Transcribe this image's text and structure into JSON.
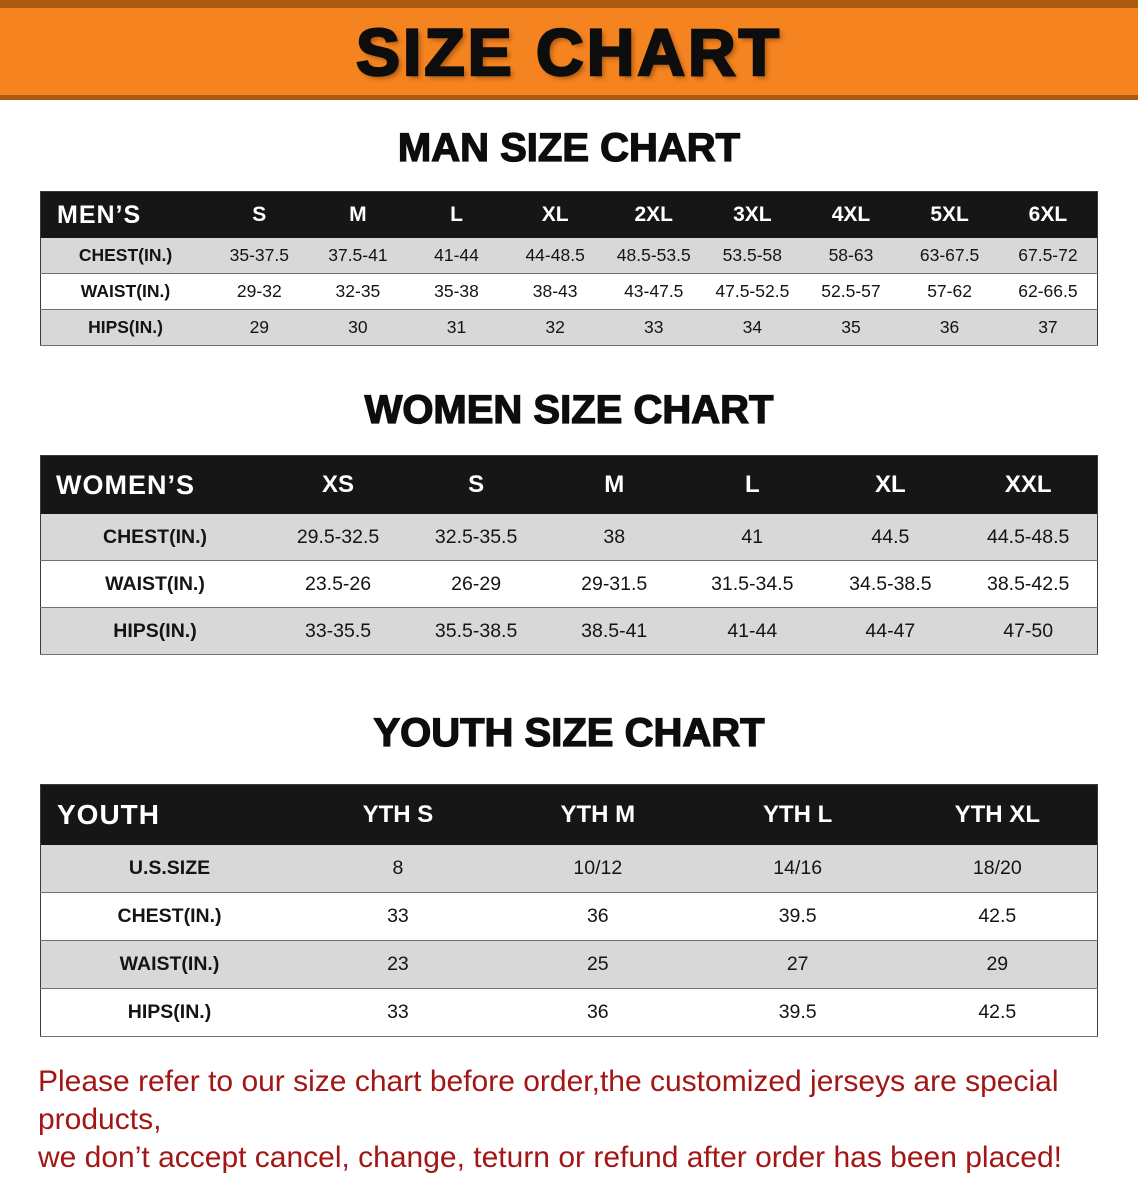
{
  "banner": {
    "title": "SIZE CHART"
  },
  "colors": {
    "banner_bg": "#f5831f",
    "banner_edge": "#a85a0e",
    "table_header_bg": "#161616",
    "row_shaded": "#d8d8d8",
    "footer_text": "#a21616"
  },
  "sections": [
    {
      "title": "MAN SIZE CHART",
      "table": {
        "header": [
          "MEN’S",
          "S",
          "M",
          "L",
          "XL",
          "2XL",
          "3XL",
          "4XL",
          "5XL",
          "6XL"
        ],
        "rows": [
          {
            "label": "CHEST(IN.)",
            "values": [
              "35-37.5",
              "37.5-41",
              "41-44",
              "44-48.5",
              "48.5-53.5",
              "53.5-58",
              "58-63",
              "63-67.5",
              "67.5-72"
            ]
          },
          {
            "label": "WAIST(IN.)",
            "values": [
              "29-32",
              "32-35",
              "35-38",
              "38-43",
              "43-47.5",
              "47.5-52.5",
              "52.5-57",
              "57-62",
              "62-66.5"
            ]
          },
          {
            "label": "HIPS(IN.)",
            "values": [
              "29",
              "30",
              "31",
              "32",
              "33",
              "34",
              "35",
              "36",
              "37"
            ]
          }
        ]
      }
    },
    {
      "title": "WOMEN SIZE CHART",
      "table": {
        "header": [
          "WOMEN’S",
          "XS",
          "S",
          "M",
          "L",
          "XL",
          "XXL"
        ],
        "rows": [
          {
            "label": "CHEST(IN.)",
            "values": [
              "29.5-32.5",
              "32.5-35.5",
              "38",
              "41",
              "44.5",
              "44.5-48.5"
            ]
          },
          {
            "label": "WAIST(IN.)",
            "values": [
              "23.5-26",
              "26-29",
              "29-31.5",
              "31.5-34.5",
              "34.5-38.5",
              "38.5-42.5"
            ]
          },
          {
            "label": "HIPS(IN.)",
            "values": [
              "33-35.5",
              "35.5-38.5",
              "38.5-41",
              "41-44",
              "44-47",
              "47-50"
            ]
          }
        ]
      }
    },
    {
      "title": "YOUTH SIZE CHART",
      "table": {
        "header": [
          "YOUTH",
          "YTH S",
          "YTH M",
          "YTH L",
          "YTH XL"
        ],
        "rows": [
          {
            "label": "U.S.SIZE",
            "values": [
              "8",
              "10/12",
              "14/16",
              "18/20"
            ]
          },
          {
            "label": "CHEST(IN.)",
            "values": [
              "33",
              "36",
              "39.5",
              "42.5"
            ]
          },
          {
            "label": "WAIST(IN.)",
            "values": [
              "23",
              "25",
              "27",
              "29"
            ]
          },
          {
            "label": "HIPS(IN.)",
            "values": [
              "33",
              "36",
              "39.5",
              "42.5"
            ]
          }
        ]
      }
    }
  ],
  "footer": {
    "lines": [
      "Please refer to our size chart before order,the customized jerseys are special products,",
      "we don’t accept cancel, change, teturn or refund after order has been placed!"
    ]
  }
}
